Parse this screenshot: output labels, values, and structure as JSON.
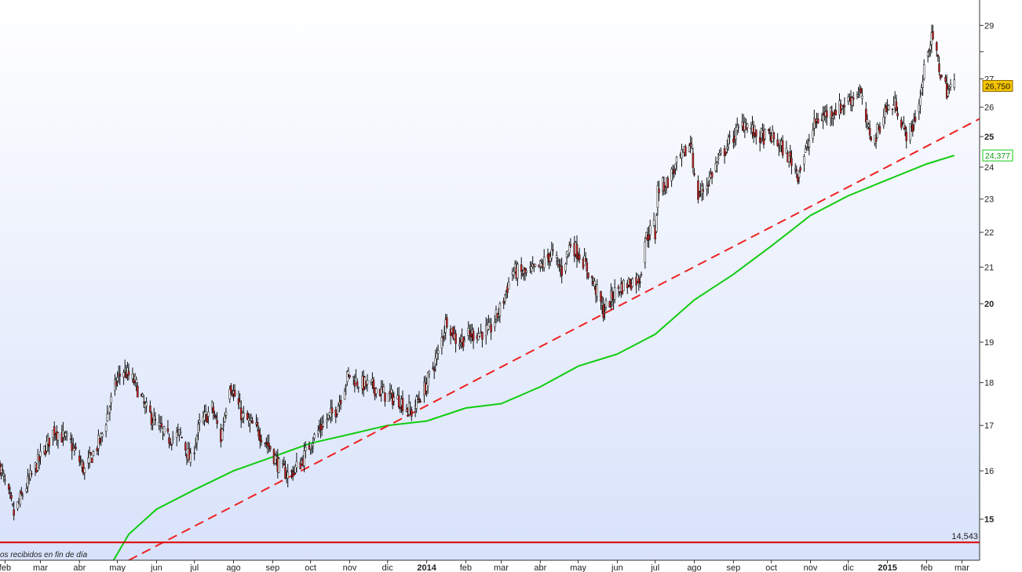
{
  "chart_data": {
    "type": "candlestick",
    "x_range": [
      "2013-01-28",
      "2015-03-15"
    ],
    "y_range": [
      14.2,
      30.0
    ],
    "y_scale": "log",
    "grid": false,
    "background_gradient": [
      "#ffffff",
      "#d8e2fa"
    ],
    "x_ticks": [
      {
        "date": "2013-02-01",
        "label": "feb"
      },
      {
        "date": "2013-03-01",
        "label": "mar"
      },
      {
        "date": "2013-04-01",
        "label": "abr"
      },
      {
        "date": "2013-05-01",
        "label": "may"
      },
      {
        "date": "2013-06-01",
        "label": "jun"
      },
      {
        "date": "2013-07-01",
        "label": "jul"
      },
      {
        "date": "2013-08-01",
        "label": "ago"
      },
      {
        "date": "2013-09-01",
        "label": "sep"
      },
      {
        "date": "2013-10-01",
        "label": "oct"
      },
      {
        "date": "2013-11-01",
        "label": "nov"
      },
      {
        "date": "2013-12-01",
        "label": "dic"
      },
      {
        "date": "2014-01-01",
        "label": "2014",
        "major": true
      },
      {
        "date": "2014-02-01",
        "label": "feb"
      },
      {
        "date": "2014-03-01",
        "label": "mar"
      },
      {
        "date": "2014-04-01",
        "label": "abr"
      },
      {
        "date": "2014-05-01",
        "label": "may"
      },
      {
        "date": "2014-06-01",
        "label": "jun"
      },
      {
        "date": "2014-07-01",
        "label": "jul"
      },
      {
        "date": "2014-08-01",
        "label": "ago"
      },
      {
        "date": "2014-09-01",
        "label": "sep"
      },
      {
        "date": "2014-10-01",
        "label": "oct"
      },
      {
        "date": "2014-11-01",
        "label": "nov"
      },
      {
        "date": "2014-12-01",
        "label": "dic"
      },
      {
        "date": "2015-01-01",
        "label": "2015",
        "major": true
      },
      {
        "date": "2015-02-01",
        "label": "feb"
      },
      {
        "date": "2015-03-01",
        "label": "mar"
      }
    ],
    "y_ticks": [
      {
        "value": 15,
        "label": "15",
        "major": true
      },
      {
        "value": 16,
        "label": "16"
      },
      {
        "value": 17,
        "label": "17"
      },
      {
        "value": 18,
        "label": "18"
      },
      {
        "value": 19,
        "label": "19"
      },
      {
        "value": 20,
        "label": "20",
        "major": true
      },
      {
        "value": 21,
        "label": "21"
      },
      {
        "value": 22,
        "label": "22"
      },
      {
        "value": 23,
        "label": "23"
      },
      {
        "value": 24,
        "label": "24"
      },
      {
        "value": 25,
        "label": "25",
        "major": true
      },
      {
        "value": 26,
        "label": "26"
      },
      {
        "value": 27,
        "label": "27"
      },
      {
        "value": 28,
        "label": ""
      },
      {
        "value": 29,
        "label": "29"
      }
    ],
    "price_path": [
      [
        "2013-01-28",
        16.1
      ],
      [
        "2013-02-08",
        15.1
      ],
      [
        "2013-02-20",
        15.8
      ],
      [
        "2013-03-05",
        16.5
      ],
      [
        "2013-03-12",
        16.9
      ],
      [
        "2013-03-25",
        16.6
      ],
      [
        "2013-04-05",
        16.0
      ],
      [
        "2013-04-18",
        16.7
      ],
      [
        "2013-05-01",
        18.1
      ],
      [
        "2013-05-06",
        18.3
      ],
      [
        "2013-05-15",
        18.0
      ],
      [
        "2013-05-23",
        17.4
      ],
      [
        "2013-05-30",
        17.1
      ],
      [
        "2013-06-10",
        16.7
      ],
      [
        "2013-06-20",
        16.8
      ],
      [
        "2013-06-28",
        16.2
      ],
      [
        "2013-07-05",
        17.0
      ],
      [
        "2013-07-15",
        17.4
      ],
      [
        "2013-07-22",
        16.7
      ],
      [
        "2013-07-29",
        18.0
      ],
      [
        "2013-08-08",
        17.2
      ],
      [
        "2013-08-20",
        16.9
      ],
      [
        "2013-08-30",
        16.5
      ],
      [
        "2013-09-06",
        16.1
      ],
      [
        "2013-09-14",
        15.9
      ],
      [
        "2013-09-24",
        16.2
      ],
      [
        "2013-10-01",
        16.6
      ],
      [
        "2013-10-10",
        17.0
      ],
      [
        "2013-10-22",
        17.4
      ],
      [
        "2013-10-31",
        18.2
      ],
      [
        "2013-11-08",
        18.0
      ],
      [
        "2013-11-20",
        17.9
      ],
      [
        "2013-11-30",
        17.7
      ],
      [
        "2013-12-10",
        17.6
      ],
      [
        "2013-12-20",
        17.3
      ],
      [
        "2013-12-31",
        17.9
      ],
      [
        "2014-01-10",
        18.7
      ],
      [
        "2014-01-17",
        19.6
      ],
      [
        "2014-01-25",
        19.0
      ],
      [
        "2014-02-05",
        19.2
      ],
      [
        "2014-02-20",
        19.3
      ],
      [
        "2014-03-01",
        19.9
      ],
      [
        "2014-03-10",
        20.9
      ],
      [
        "2014-03-20",
        20.8
      ],
      [
        "2014-04-01",
        21.0
      ],
      [
        "2014-04-10",
        21.4
      ],
      [
        "2014-04-18",
        20.9
      ],
      [
        "2014-04-25",
        21.7
      ],
      [
        "2014-05-05",
        21.2
      ],
      [
        "2014-05-15",
        20.4
      ],
      [
        "2014-05-21",
        19.8
      ],
      [
        "2014-06-01",
        20.4
      ],
      [
        "2014-06-12",
        20.6
      ],
      [
        "2014-06-19",
        20.7
      ],
      [
        "2014-06-23",
        21.8
      ],
      [
        "2014-06-30",
        22.2
      ],
      [
        "2014-07-01",
        21.9
      ],
      [
        "2014-07-03",
        23.3
      ],
      [
        "2014-07-10",
        23.5
      ],
      [
        "2014-07-20",
        24.2
      ],
      [
        "2014-07-30",
        24.8
      ],
      [
        "2014-08-02",
        23.0
      ],
      [
        "2014-08-10",
        23.4
      ],
      [
        "2014-08-20",
        24.2
      ],
      [
        "2014-08-30",
        24.9
      ],
      [
        "2014-09-10",
        25.5
      ],
      [
        "2014-09-20",
        25.0
      ],
      [
        "2014-10-01",
        25.0
      ],
      [
        "2014-10-10",
        24.6
      ],
      [
        "2014-10-17",
        24.2
      ],
      [
        "2014-10-22",
        23.8
      ],
      [
        "2014-10-30",
        24.7
      ],
      [
        "2014-11-05",
        25.5
      ],
      [
        "2014-11-15",
        25.8
      ],
      [
        "2014-11-25",
        26.0
      ],
      [
        "2014-12-03",
        26.3
      ],
      [
        "2014-12-10",
        26.6
      ],
      [
        "2014-12-16",
        25.3
      ],
      [
        "2014-12-22",
        24.9
      ],
      [
        "2014-12-30",
        25.9
      ],
      [
        "2015-01-08",
        26.1
      ],
      [
        "2015-01-15",
        25.1
      ],
      [
        "2015-01-20",
        25.2
      ],
      [
        "2015-01-27",
        26.3
      ],
      [
        "2015-02-02",
        28.2
      ],
      [
        "2015-02-06",
        28.5
      ],
      [
        "2015-02-12",
        27.2
      ],
      [
        "2015-02-17",
        26.6
      ],
      [
        "2015-02-23",
        26.75
      ]
    ],
    "moving_average": {
      "color": "#11cc11",
      "last_value": "24,377",
      "points": [
        [
          "2013-04-28",
          14.2
        ],
        [
          "2013-05-10",
          14.7
        ],
        [
          "2013-06-01",
          15.2
        ],
        [
          "2013-07-01",
          15.6
        ],
        [
          "2013-08-01",
          16.0
        ],
        [
          "2013-09-01",
          16.3
        ],
        [
          "2013-10-01",
          16.6
        ],
        [
          "2013-11-01",
          16.8
        ],
        [
          "2013-12-01",
          17.0
        ],
        [
          "2014-01-01",
          17.1
        ],
        [
          "2014-02-01",
          17.4
        ],
        [
          "2014-03-01",
          17.5
        ],
        [
          "2014-04-01",
          17.9
        ],
        [
          "2014-05-01",
          18.4
        ],
        [
          "2014-06-01",
          18.7
        ],
        [
          "2014-07-01",
          19.2
        ],
        [
          "2014-08-01",
          20.1
        ],
        [
          "2014-09-01",
          20.8
        ],
        [
          "2014-10-01",
          21.6
        ],
        [
          "2014-11-01",
          22.5
        ],
        [
          "2014-12-01",
          23.1
        ],
        [
          "2015-01-01",
          23.6
        ],
        [
          "2015-02-01",
          24.1
        ],
        [
          "2015-02-23",
          24.377
        ]
      ]
    },
    "trend_line": {
      "color": "#ee2222",
      "style": "dashed",
      "points": [
        [
          "2013-05-10",
          14.2
        ],
        [
          "2015-03-15",
          25.6
        ]
      ]
    },
    "support_line": {
      "color": "#dd0000",
      "value": 14.543,
      "label": "14,543"
    },
    "last_price": {
      "value": 26.75,
      "label": "26,750",
      "color": "#f5c400"
    }
  },
  "note": {
    "text": "os recibidos en fin de día"
  }
}
